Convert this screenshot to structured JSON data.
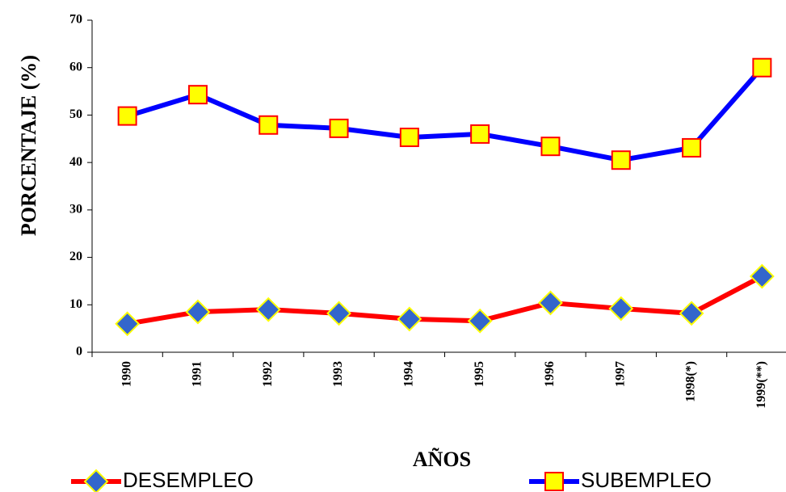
{
  "chart_data": {
    "type": "line",
    "y_label": "PORCENTAJE (%)",
    "x_label": "AÑOS",
    "categories": [
      "1990",
      "1991",
      "1992",
      "1993",
      "1994",
      "1995",
      "1996",
      "1997",
      "1998(*)",
      "1999(**)"
    ],
    "series": [
      {
        "name": "DESEMPLEO",
        "color": "#ff0000",
        "marker_color": "#3366cc",
        "marker_edge": "#ffff00",
        "marker": "diamond",
        "values": [
          6.0,
          8.5,
          9.0,
          8.2,
          7.0,
          6.6,
          10.4,
          9.2,
          8.2,
          16.0
        ]
      },
      {
        "name": "SUBEMPLEO",
        "color": "#0000ff",
        "marker_color": "#ffff00",
        "marker_edge": "#ff0000",
        "marker": "square",
        "values": [
          49.8,
          54.3,
          47.9,
          47.2,
          45.3,
          46.0,
          43.4,
          40.5,
          43.1,
          60.0
        ]
      }
    ],
    "ylim": [
      0,
      70
    ],
    "yticks": [
      0,
      10,
      20,
      30,
      40,
      50,
      60,
      70
    ],
    "grid": false
  }
}
